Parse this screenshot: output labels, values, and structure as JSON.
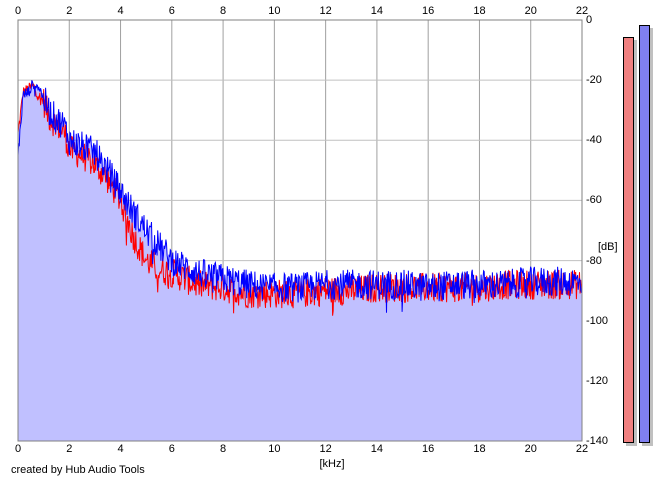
{
  "chart_data": {
    "type": "area",
    "title": "",
    "xlabel": "[kHz]",
    "ylabel": "[dB]",
    "xlim": [
      0,
      22
    ],
    "ylim": [
      -140,
      0
    ],
    "x_ticks": [
      "0",
      "2",
      "4",
      "6",
      "8",
      "10",
      "12",
      "14",
      "16",
      "18",
      "20",
      "22"
    ],
    "y_ticks": [
      "0",
      "-20",
      "-40",
      "-60",
      "-80",
      "-100",
      "-120",
      "-140"
    ],
    "grid": true,
    "fill_color": "#c0c0ff",
    "series": [
      {
        "color": "#ff0000",
        "x": [
          0,
          0.2,
          0.4,
          0.6,
          0.8,
          1,
          1.2,
          1.5,
          1.8,
          2,
          2.5,
          3,
          3.5,
          4,
          4.5,
          5,
          5.5,
          6,
          6.5,
          7,
          8,
          9,
          10,
          11,
          12,
          13,
          14,
          15,
          16,
          17,
          18,
          19,
          20,
          21,
          22
        ],
        "y": [
          -38,
          -24,
          -23,
          -22,
          -25,
          -27,
          -32,
          -35,
          -37,
          -43,
          -45,
          -48,
          -53,
          -60,
          -72,
          -80,
          -83,
          -84,
          -86,
          -88,
          -89,
          -91,
          -91,
          -91,
          -90,
          -90,
          -89,
          -89,
          -89,
          -89,
          -89,
          -88,
          -88,
          -88,
          -88
        ]
      },
      {
        "color": "#0000ff",
        "x": [
          0,
          0.2,
          0.4,
          0.6,
          0.8,
          1,
          1.2,
          1.5,
          1.8,
          2,
          2.5,
          3,
          3.5,
          4,
          4.5,
          5,
          5.5,
          6,
          6.5,
          7,
          8,
          9,
          10,
          11,
          12,
          13,
          14,
          15,
          16,
          17,
          18,
          19,
          20,
          21,
          22
        ],
        "y": [
          -45,
          -25,
          -24,
          -21,
          -22,
          -26,
          -30,
          -33,
          -35,
          -40,
          -42,
          -44,
          -50,
          -57,
          -64,
          -70,
          -75,
          -80,
          -82,
          -84,
          -86,
          -88,
          -89,
          -89,
          -88,
          -88,
          -88,
          -88,
          -89,
          -88,
          -88,
          -88,
          -87,
          -87,
          -87
        ]
      }
    ],
    "level_meters": [
      {
        "color": "#f08080",
        "value_db": -5.5
      },
      {
        "color": "#8080f0",
        "value_db": -1.5
      }
    ]
  },
  "credit": "created by Hub Audio Tools"
}
